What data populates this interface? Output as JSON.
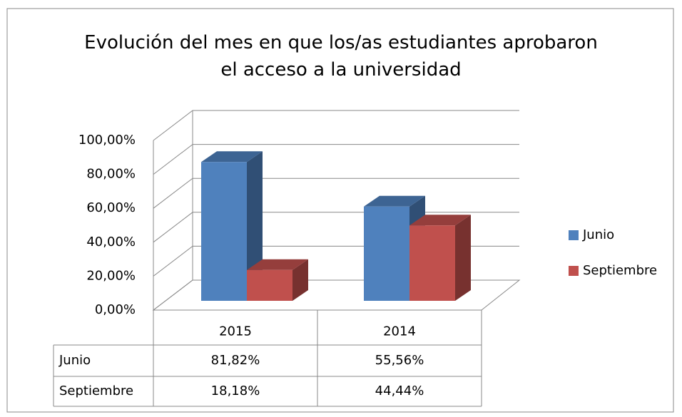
{
  "chart_data": {
    "type": "bar3d",
    "title": "Evolución del mes en que los/as estudiantes aprobaron el acceso a la universidad",
    "categories": [
      "2015",
      "2014"
    ],
    "series": [
      {
        "name": "Junio",
        "color": "#4f81bd",
        "values": [
          81.82,
          55.56
        ],
        "value_labels": [
          "81,82%",
          "55,56%"
        ]
      },
      {
        "name": "Septiembre",
        "color": "#c0504d",
        "values": [
          18.18,
          44.44
        ],
        "value_labels": [
          "18,18%",
          "44,44%"
        ]
      }
    ],
    "ylim": [
      0,
      100
    ],
    "yticks": [
      {
        "value": 0,
        "label": "0,00%"
      },
      {
        "value": 20,
        "label": "20,00%"
      },
      {
        "value": 40,
        "label": "40,00%"
      },
      {
        "value": 60,
        "label": "60,00%"
      },
      {
        "value": 80,
        "label": "80,00%"
      },
      {
        "value": 100,
        "label": "100,00%"
      }
    ],
    "grid": true,
    "legend": "right",
    "data_table": true
  }
}
